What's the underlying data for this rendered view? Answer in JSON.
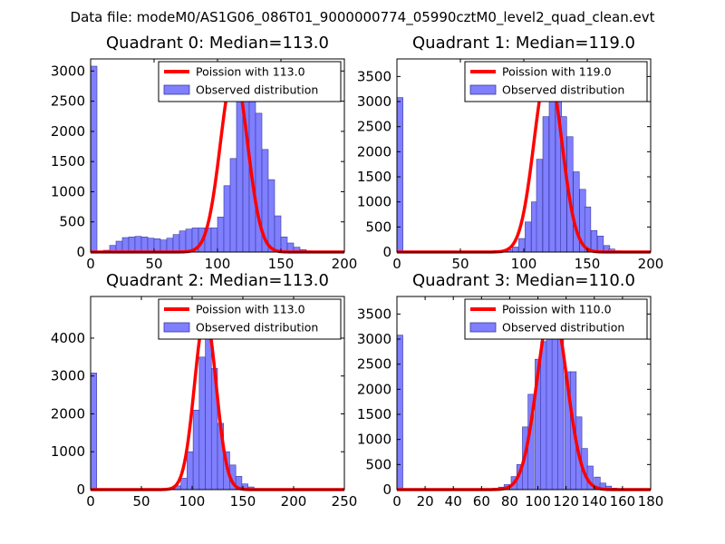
{
  "suptitle": "Data file: modeM0/AS1G06_086T01_9000000774_05990cztM0_level2_quad_clean.evt",
  "colors": {
    "bar": "#7f7fff",
    "bar_edge": "#3a3a9e",
    "line": "#ff0000",
    "axes": "#000000"
  },
  "legend_labels": {
    "line_prefix": "Poission with",
    "bars": "Observed distribution"
  },
  "chart_data": [
    {
      "type": "bar",
      "title": "Quadrant 0: Median=113.0",
      "median": 113.0,
      "legend_line": "Poission with 113.0",
      "legend_bars": "Observed distribution",
      "xlim": [
        0,
        200
      ],
      "ylim": [
        0,
        3200
      ],
      "xticks": [
        0,
        50,
        100,
        150,
        200
      ],
      "yticks": [
        0,
        500,
        1000,
        1500,
        2000,
        2500,
        3000
      ],
      "bin_width": 5,
      "bins": [
        [
          0,
          3080
        ],
        [
          10,
          30
        ],
        [
          15,
          110
        ],
        [
          20,
          180
        ],
        [
          25,
          240
        ],
        [
          30,
          250
        ],
        [
          35,
          260
        ],
        [
          40,
          250
        ],
        [
          45,
          230
        ],
        [
          50,
          220
        ],
        [
          55,
          200
        ],
        [
          60,
          230
        ],
        [
          65,
          290
        ],
        [
          70,
          350
        ],
        [
          75,
          380
        ],
        [
          80,
          400
        ],
        [
          85,
          400
        ],
        [
          90,
          400
        ],
        [
          95,
          400
        ],
        [
          100,
          580
        ],
        [
          105,
          1100
        ],
        [
          110,
          1550
        ],
        [
          115,
          2500
        ],
        [
          120,
          3000
        ],
        [
          125,
          2900
        ],
        [
          130,
          2300
        ],
        [
          135,
          1700
        ],
        [
          140,
          1200
        ],
        [
          145,
          600
        ],
        [
          150,
          250
        ],
        [
          155,
          150
        ],
        [
          160,
          80
        ],
        [
          165,
          40
        ],
        [
          170,
          20
        ],
        [
          175,
          10
        ]
      ],
      "poisson": {
        "mean": 113.0,
        "peak": 3000
      }
    },
    {
      "type": "bar",
      "title": "Quadrant 1: Median=119.0",
      "median": 119.0,
      "legend_line": "Poission with 119.0",
      "legend_bars": "Observed distribution",
      "xlim": [
        0,
        200
      ],
      "ylim": [
        0,
        3850
      ],
      "xticks": [
        0,
        50,
        100,
        150,
        200
      ],
      "yticks": [
        0,
        500,
        1000,
        1500,
        2000,
        2500,
        3000,
        3500
      ],
      "bin_width": 4.75,
      "bins": [
        [
          0,
          3080
        ],
        [
          68,
          20
        ],
        [
          72,
          20
        ],
        [
          77,
          30
        ],
        [
          82,
          40
        ],
        [
          87,
          50
        ],
        [
          91,
          100
        ],
        [
          96,
          270
        ],
        [
          101,
          600
        ],
        [
          106,
          1000
        ],
        [
          110,
          1850
        ],
        [
          115,
          2700
        ],
        [
          120,
          3600
        ],
        [
          125,
          3650
        ],
        [
          129,
          2700
        ],
        [
          134,
          2300
        ],
        [
          139,
          1600
        ],
        [
          144,
          1250
        ],
        [
          148,
          900
        ],
        [
          153,
          430
        ],
        [
          158,
          320
        ],
        [
          163,
          130
        ],
        [
          167,
          60
        ],
        [
          172,
          25
        ],
        [
          177,
          10
        ]
      ],
      "poisson": {
        "mean": 119.0,
        "peak": 3650
      }
    },
    {
      "type": "bar",
      "title": "Quadrant 2: Median=113.0",
      "median": 113.0,
      "legend_line": "Poission with 113.0",
      "legend_bars": "Observed distribution",
      "xlim": [
        0,
        250
      ],
      "ylim": [
        0,
        5100
      ],
      "xticks": [
        0,
        50,
        100,
        150,
        200,
        250
      ],
      "yticks": [
        0,
        1000,
        2000,
        3000,
        4000
      ],
      "bin_width": 6,
      "bins": [
        [
          0,
          3080
        ],
        [
          65,
          20
        ],
        [
          71,
          30
        ],
        [
          77,
          40
        ],
        [
          83,
          100
        ],
        [
          89,
          300
        ],
        [
          95,
          1000
        ],
        [
          101,
          2100
        ],
        [
          107,
          3500
        ],
        [
          113,
          4600
        ],
        [
          119,
          3200
        ],
        [
          125,
          1750
        ],
        [
          131,
          1000
        ],
        [
          137,
          650
        ],
        [
          143,
          350
        ],
        [
          149,
          150
        ],
        [
          155,
          70
        ],
        [
          161,
          30
        ],
        [
          167,
          15
        ],
        [
          173,
          10
        ],
        [
          179,
          5
        ],
        [
          185,
          5
        ],
        [
          191,
          3
        ],
        [
          197,
          3
        ],
        [
          203,
          2
        ]
      ],
      "poisson": {
        "mean": 113.0,
        "peak": 4600
      }
    },
    {
      "type": "bar",
      "title": "Quadrant 3: Median=110.0",
      "median": 110.0,
      "legend_line": "Poission with 110.0",
      "legend_bars": "Observed distribution",
      "xlim": [
        0,
        180
      ],
      "ylim": [
        0,
        3850
      ],
      "xticks": [
        0,
        20,
        40,
        60,
        80,
        100,
        120,
        140,
        160,
        180
      ],
      "yticks": [
        0,
        500,
        1000,
        1500,
        2000,
        2500,
        3000,
        3500
      ],
      "bin_width": 4.2,
      "bins": [
        [
          0,
          3080
        ],
        [
          60,
          10
        ],
        [
          64,
          20
        ],
        [
          68,
          30
        ],
        [
          72,
          50
        ],
        [
          76,
          100
        ],
        [
          81,
          260
        ],
        [
          85,
          500
        ],
        [
          89,
          1250
        ],
        [
          93,
          1900
        ],
        [
          98,
          2600
        ],
        [
          102,
          2950
        ],
        [
          106,
          3450
        ],
        [
          110,
          3650
        ],
        [
          114,
          3400
        ],
        [
          119,
          2350
        ],
        [
          123,
          2350
        ],
        [
          127,
          1450
        ],
        [
          131,
          820
        ],
        [
          135,
          470
        ],
        [
          140,
          250
        ],
        [
          144,
          130
        ],
        [
          148,
          70
        ],
        [
          152,
          30
        ],
        [
          156,
          15
        ],
        [
          161,
          8
        ]
      ],
      "poisson": {
        "mean": 110.0,
        "peak": 3650
      }
    }
  ]
}
